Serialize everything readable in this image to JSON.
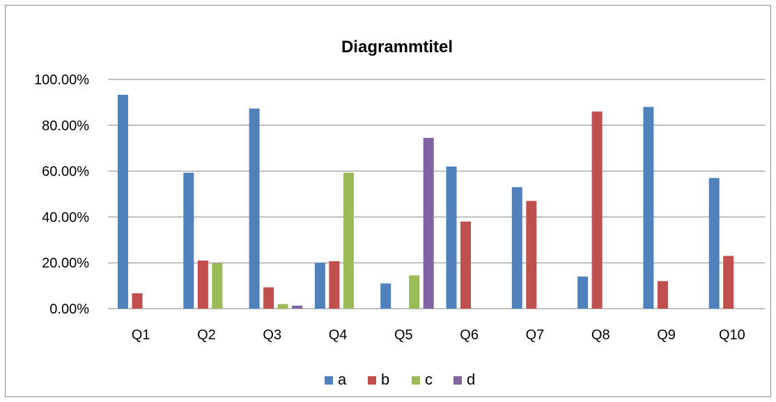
{
  "chart_data": {
    "type": "bar",
    "title": "Diagrammtitel",
    "xlabel": "",
    "ylabel": "",
    "categories": [
      "Q1",
      "Q2",
      "Q3",
      "Q4",
      "Q5",
      "Q6",
      "Q7",
      "Q8",
      "Q9",
      "Q10"
    ],
    "series": [
      {
        "name": "a",
        "color": "#4f81bd",
        "values": [
          93.3,
          59.3,
          87.3,
          20.0,
          11.0,
          62.0,
          53.0,
          14.0,
          88.0,
          57.0
        ]
      },
      {
        "name": "b",
        "color": "#c0504d",
        "values": [
          6.7,
          21.0,
          9.3,
          20.7,
          0,
          38.0,
          47.0,
          86.0,
          12.0,
          23.0
        ]
      },
      {
        "name": "c",
        "color": "#9bbb59",
        "values": [
          0,
          19.8,
          2.0,
          59.3,
          14.5,
          0,
          0,
          0,
          0,
          0
        ]
      },
      {
        "name": "d",
        "color": "#8064a2",
        "values": [
          0,
          0,
          1.3,
          0,
          74.5,
          0,
          0,
          0,
          0,
          0
        ]
      }
    ],
    "ylim": [
      0,
      100
    ],
    "yticks": [
      "0.00%",
      "20.00%",
      "40.00%",
      "60.00%",
      "80.00%",
      "100.00%"
    ],
    "grid": true,
    "legend_position": "bottom"
  }
}
